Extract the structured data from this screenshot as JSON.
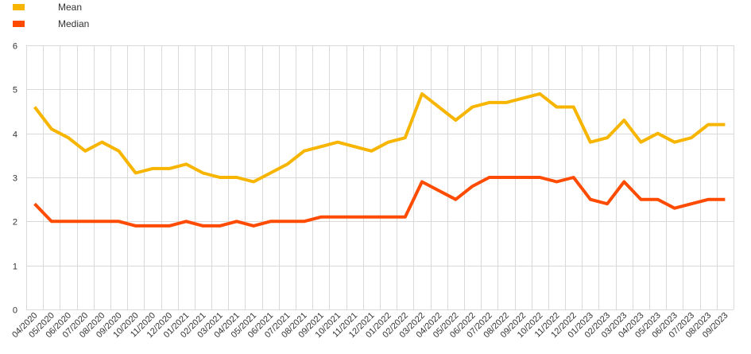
{
  "chart_data": {
    "type": "line",
    "categories": [
      "04/2020",
      "05/2020",
      "06/2020",
      "07/2020",
      "08/2020",
      "09/2020",
      "10/2020",
      "11/2020",
      "12/2020",
      "01/2021",
      "02/2021",
      "03/2021",
      "04/2021",
      "05/2021",
      "06/2021",
      "07/2021",
      "08/2021",
      "09/2021",
      "10/2021",
      "11/2021",
      "12/2021",
      "01/2022",
      "02/2022",
      "03/2022",
      "04/2022",
      "05/2022",
      "06/2022",
      "07/2022",
      "08/2022",
      "09/2022",
      "10/2022",
      "11/2022",
      "12/2022",
      "01/2023",
      "02/2023",
      "03/2023",
      "04/2023",
      "05/2023",
      "06/2023",
      "07/2023",
      "08/2023",
      "09/2023"
    ],
    "series": [
      {
        "name": "Mean",
        "color": "#f7b500",
        "values": [
          4.6,
          4.1,
          3.9,
          3.6,
          3.8,
          3.6,
          3.1,
          3.2,
          3.2,
          3.3,
          3.1,
          3.0,
          3.0,
          2.9,
          3.1,
          3.3,
          3.6,
          3.7,
          3.8,
          3.7,
          3.6,
          3.8,
          3.9,
          4.9,
          4.6,
          4.3,
          4.6,
          4.7,
          4.7,
          4.8,
          4.9,
          4.6,
          4.6,
          3.8,
          3.9,
          4.3,
          3.8,
          4.0,
          3.8,
          3.9,
          4.2,
          4.2
        ]
      },
      {
        "name": "Median",
        "color": "#ff4b00",
        "values": [
          2.4,
          2.0,
          2.0,
          2.0,
          2.0,
          2.0,
          1.9,
          1.9,
          1.9,
          2.0,
          1.9,
          1.9,
          2.0,
          1.9,
          2.0,
          2.0,
          2.0,
          2.1,
          2.1,
          2.1,
          2.1,
          2.1,
          2.1,
          2.9,
          2.7,
          2.5,
          2.8,
          3.0,
          3.0,
          3.0,
          3.0,
          2.9,
          3.0,
          2.5,
          2.4,
          2.9,
          2.5,
          2.5,
          2.3,
          2.4,
          2.5,
          2.5
        ]
      }
    ],
    "y_ticks": [
      "0",
      "1",
      "2",
      "3",
      "4",
      "5",
      "6"
    ],
    "ylim": [
      0,
      6
    ],
    "grid": true,
    "legend_position": "top-left"
  }
}
